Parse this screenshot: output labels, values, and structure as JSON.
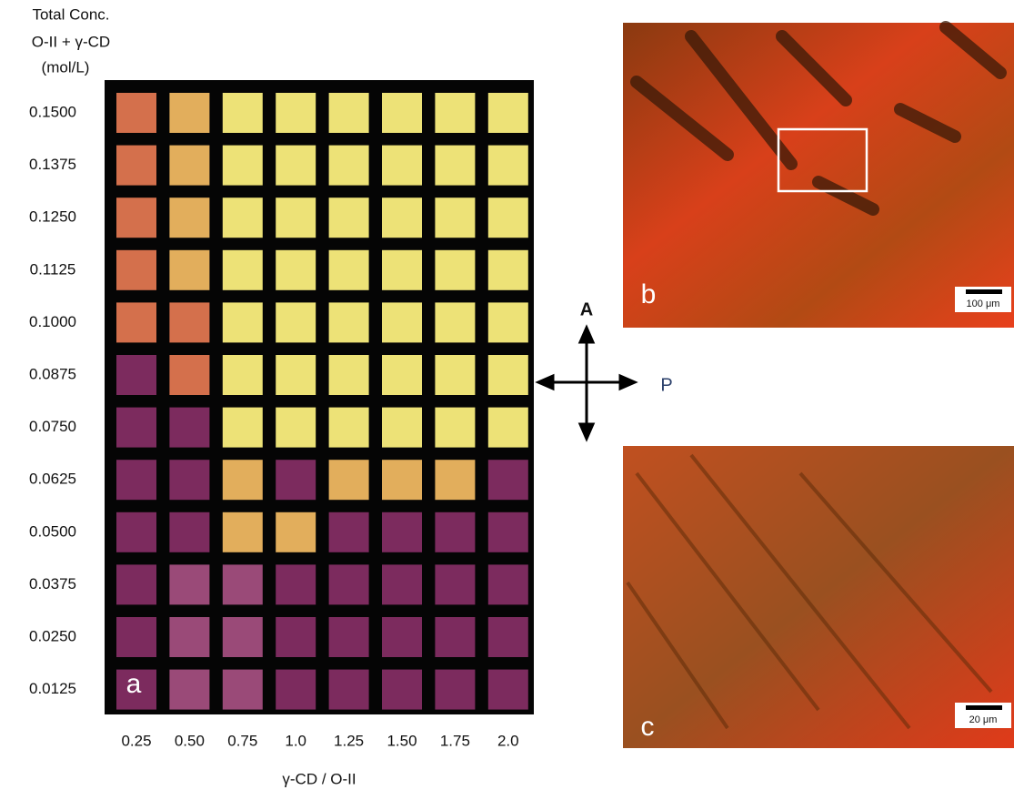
{
  "panel_a": {
    "label": "a",
    "y_axis_title": [
      "Total Conc.",
      "O-II + γ-CD",
      "(mol/L)"
    ],
    "rows": [
      "0.1500",
      "0.1375",
      "0.1250",
      "0.1125",
      "0.1000",
      "0.0875",
      "0.0750",
      "0.0625",
      "0.0500",
      "0.0375",
      "0.0250",
      "0.0125"
    ],
    "columns": [
      "0.25",
      "0.50",
      "0.75",
      "1.0",
      "1.25",
      "1.50",
      "1.75",
      "2.0"
    ],
    "x_axis_title": "γ-CD / O-II"
  },
  "polarizers": {
    "analyzer": "A",
    "polarizer": "P"
  },
  "panel_b": {
    "label": "b",
    "scale_bar": "100 μm"
  },
  "panel_c": {
    "label": "c",
    "scale_bar": "20 μm"
  }
}
